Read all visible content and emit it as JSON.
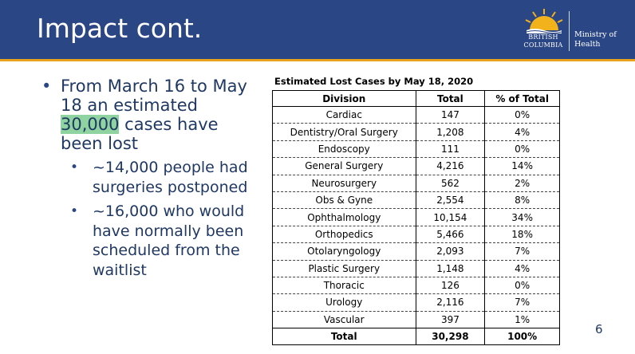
{
  "title": "Impact cont.",
  "logo": {
    "bc_line1": "BRITISH",
    "bc_line2": "COLUMBIA",
    "ministry_line1": "Ministry of",
    "ministry_line2": "Health"
  },
  "bullets": {
    "main_before": "From March 16 to May 18 an estimated ",
    "main_highlight": "30,000",
    "main_after": " cases have been lost",
    "sub1": "~14,000 people had surgeries postponed",
    "sub2": "~16,000 who would have normally been scheduled from the waitlist"
  },
  "table": {
    "caption": "Estimated Lost Cases by May 18, 2020",
    "headers": [
      "Division",
      "Total",
      "% of Total"
    ],
    "rows": [
      [
        "Cardiac",
        "147",
        "0%"
      ],
      [
        "Dentistry/Oral Surgery",
        "1,208",
        "4%"
      ],
      [
        "Endoscopy",
        "111",
        "0%"
      ],
      [
        "General Surgery",
        "4,216",
        "14%"
      ],
      [
        "Neurosurgery",
        "562",
        "2%"
      ],
      [
        "Obs & Gyne",
        "2,554",
        "8%"
      ],
      [
        "Ophthalmology",
        "10,154",
        "34%"
      ],
      [
        "Orthopedics",
        "5,466",
        "18%"
      ],
      [
        "Otolaryngology",
        "2,093",
        "7%"
      ],
      [
        "Plastic Surgery",
        "1,148",
        "4%"
      ],
      [
        "Thoracic",
        "126",
        "0%"
      ],
      [
        "Urology",
        "2,116",
        "7%"
      ],
      [
        "Vascular",
        "397",
        "1%"
      ]
    ],
    "total": [
      "Total",
      "30,298",
      "100%"
    ]
  },
  "page_number": "6",
  "colors": {
    "header": "#2b4684",
    "accent": "#e8a21d",
    "highlight": "#8ed3a0",
    "text": "#1f3864"
  }
}
